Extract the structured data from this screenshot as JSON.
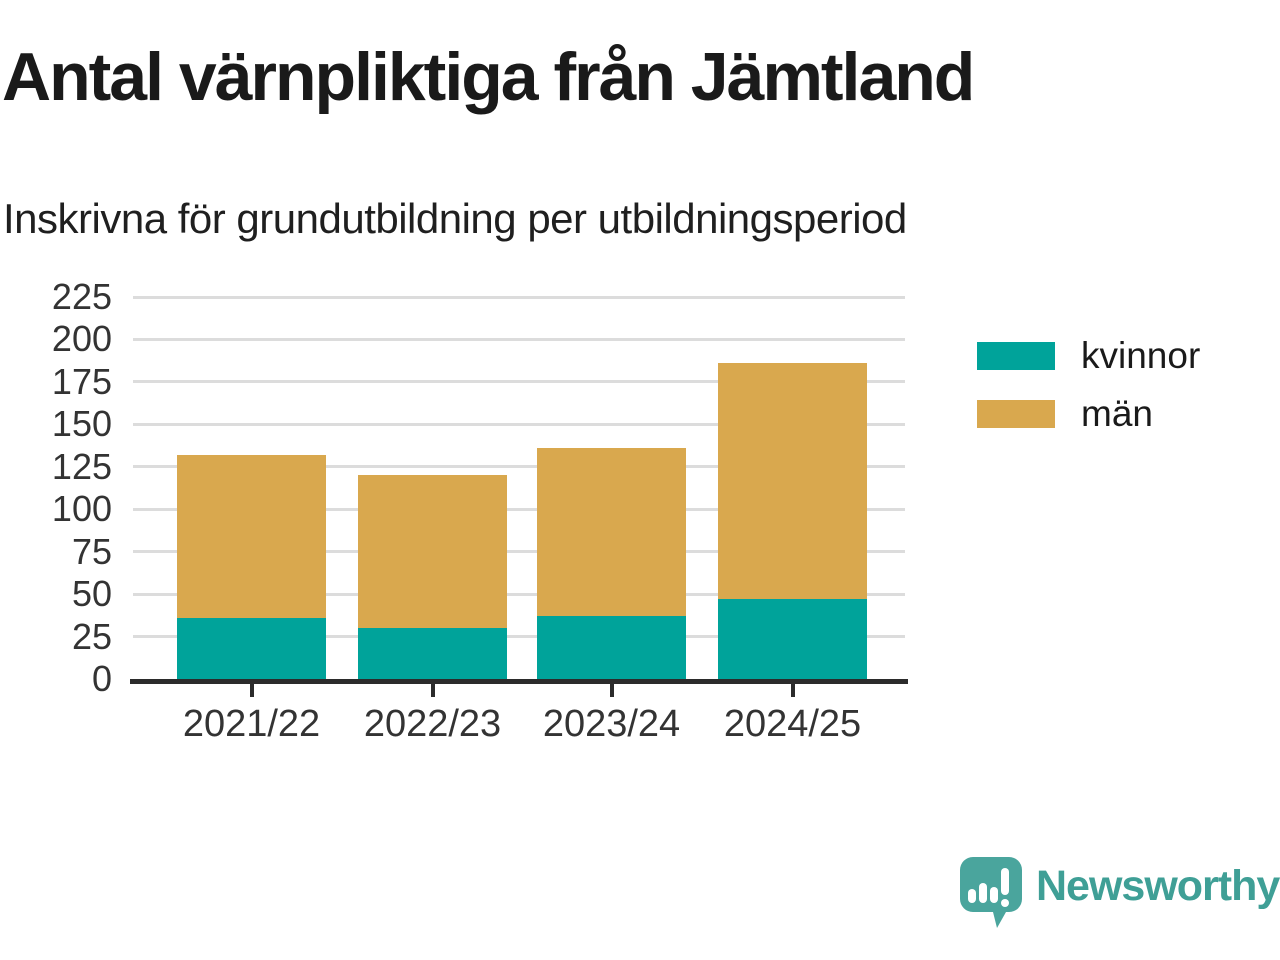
{
  "header": {
    "title": "Antal värnpliktiga från Jämtland",
    "subtitle": "Inskrivna för grundutbildning per utbildningsperiod"
  },
  "chart_data": {
    "type": "bar",
    "stacked": true,
    "categories": [
      "2021/22",
      "2022/23",
      "2023/24",
      "2024/25"
    ],
    "series": [
      {
        "name": "kvinnor",
        "color": "#00a39a",
        "values": [
          36,
          30,
          37,
          47
        ]
      },
      {
        "name": "män",
        "color": "#d9a84e",
        "values": [
          96,
          90,
          99,
          139
        ]
      }
    ],
    "stack_totals": [
      132,
      120,
      136,
      186
    ],
    "title": "Antal värnpliktiga från Jämtland",
    "subtitle": "Inskrivna för grundutbildning per utbildningsperiod",
    "xlabel": "",
    "ylabel": "",
    "ylim": [
      0,
      225
    ],
    "yticks": [
      0,
      25,
      50,
      75,
      100,
      125,
      150,
      175,
      200,
      225
    ],
    "grid": "horizontal",
    "legend_position": "right"
  },
  "branding": {
    "logo_text": "Newsworthy",
    "logo_icon": "speech-bubble-bar-chart-icon"
  },
  "colors": {
    "kvinnor": "#00a39a",
    "man": "#d9a84e",
    "title_text": "#1a1a1a",
    "axis_text": "#333333",
    "gridline": "#dcdcdc",
    "axis_line": "#2b2b2b",
    "logo_bubble": "#4aa59d",
    "logo_text": "#3f9f96",
    "background": "#ffffff"
  }
}
